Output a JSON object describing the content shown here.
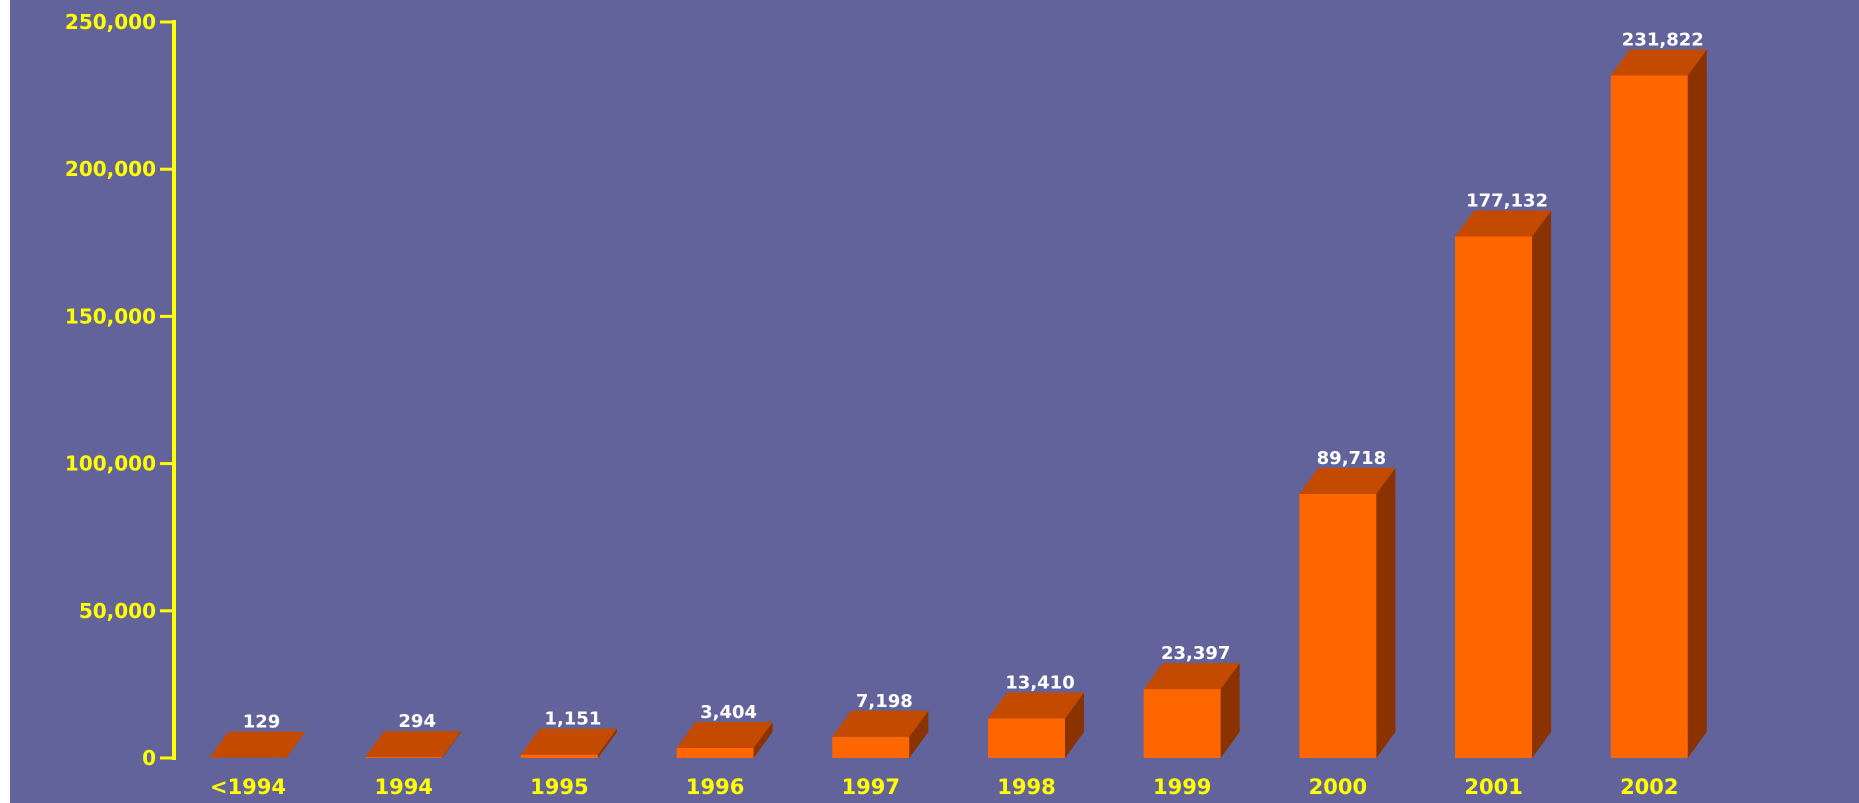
{
  "chart_data": {
    "type": "bar",
    "title": "",
    "xlabel": "",
    "ylabel": "",
    "ylim": [
      0,
      250000
    ],
    "yticks": [
      0,
      50000,
      100000,
      150000,
      200000,
      250000
    ],
    "ytick_labels": [
      "0",
      "50,000",
      "100,000",
      "150,000",
      "200,000",
      "250,000"
    ],
    "categories": [
      "<1994",
      "1994",
      "1995",
      "1996",
      "1997",
      "1998",
      "1999",
      "2000",
      "2001",
      "2002"
    ],
    "values": [
      129,
      294,
      1151,
      3404,
      7198,
      13410,
      23397,
      89718,
      177132,
      231822
    ],
    "value_labels": [
      "129",
      "294",
      "1,151",
      "3,404",
      "7,198",
      "13,410",
      "23,397",
      "89,718",
      "177,132",
      "231,822"
    ],
    "style": "3d",
    "grid": false,
    "legend": "none"
  },
  "colors": {
    "background": "#62639b",
    "axis": "#ffff00",
    "axis_text": "#ffff00",
    "bar_front": "#ff6600",
    "bar_top": "#c44a00",
    "bar_side": "#8a3300",
    "value_label": "#ffffff"
  }
}
